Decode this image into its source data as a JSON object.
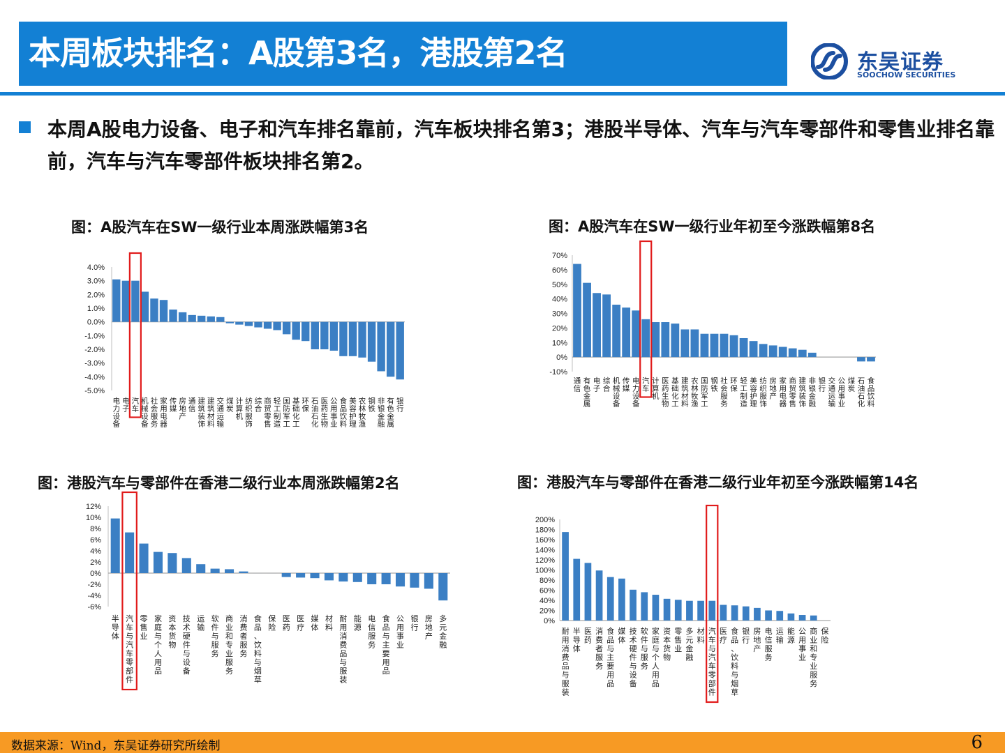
{
  "header": {
    "title": "本周板块排名：A股第3名，港股第2名"
  },
  "logo": {
    "name_cn": "东吴证券",
    "name_en": "SOOCHOW SECURITIES",
    "color": "#1c4fa0"
  },
  "bullet": {
    "text": "本周A股电力设备、电子和汽车排名靠前，汽车板块排名第3；港股半导体、汽车与汽车零部件和零售业排名靠前，汽车与汽车零部件板块排名第2。"
  },
  "footer": {
    "source": "数据来源：Wind，东吴证券研究所绘制",
    "page": "6"
  },
  "colors": {
    "accent": "#1380d4",
    "bar": "#3b7fc4",
    "highlight": "#e11b1b",
    "footer": "#f79a24"
  },
  "chart_data": [
    {
      "type": "bar",
      "title": "图：A股汽车在SW一级行业本周涨跌幅第3名",
      "categories": [
        "电力设备",
        "电子",
        "汽车",
        "机械设备",
        "社会服务",
        "家用电器",
        "传媒",
        "房地产",
        "通信",
        "建筑装饰",
        "建筑材料",
        "交通运输",
        "煤炭",
        "计算机",
        "纺织服饰",
        "综合",
        "商贸零售",
        "轻工制造",
        "国防军工",
        "基础化工",
        "环保",
        "石油石化",
        "医药生物",
        "公用事业",
        "食品饮料",
        "美容护理",
        "农林牧渔",
        "钢铁",
        "非银金融",
        "有色金属",
        "银行"
      ],
      "values": [
        3.1,
        3.0,
        3.0,
        2.2,
        1.7,
        1.6,
        0.9,
        0.7,
        0.5,
        0.45,
        0.4,
        0.35,
        -0.1,
        -0.2,
        -0.3,
        -0.4,
        -0.5,
        -0.6,
        -0.9,
        -1.3,
        -1.4,
        -2.0,
        -2.0,
        -2.1,
        -2.5,
        -2.5,
        -2.6,
        -2.9,
        -3.6,
        -4.0,
        -4.2
      ],
      "highlight": "汽车",
      "ylim": [
        -5,
        4
      ],
      "yticks": [
        "4.0%",
        "3.0%",
        "2.0%",
        "1.0%",
        "0.0%",
        "-1.0%",
        "-2.0%",
        "-3.0%",
        "-4.0%",
        "-5.0%"
      ]
    },
    {
      "type": "bar",
      "title": "图：A股汽车在SW一级行业年初至今涨跌幅第8名",
      "categories": [
        "通信",
        "有色金属",
        "电子",
        "综合",
        "机械设备",
        "传媒",
        "电力设备",
        "汽车",
        "计算机",
        "医药生物",
        "基础化工",
        "建筑材料",
        "农林牧渔",
        "国防军工",
        "钢铁",
        "社会服务",
        "环保",
        "轻工制造",
        "美容护理",
        "纺织服饰",
        "房地产",
        "家用电器",
        "商贸零售",
        "建筑装饰",
        "非银金融",
        "银行",
        "交通运输",
        "公用事业",
        "煤炭",
        "石油石化",
        "食品饮料"
      ],
      "values": [
        64,
        51,
        44,
        43,
        36,
        34,
        32,
        26,
        24,
        24,
        23,
        19,
        19,
        16,
        16,
        16,
        15,
        13,
        11,
        9,
        8,
        7,
        6,
        5,
        3,
        0,
        0,
        0,
        0,
        -3,
        -3
      ],
      "highlight": "汽车",
      "ylim": [
        -10,
        70
      ],
      "yticks": [
        "70%",
        "60%",
        "50%",
        "40%",
        "30%",
        "20%",
        "10%",
        "0%",
        "-10%"
      ]
    },
    {
      "type": "bar",
      "title": "图：港股汽车与零部件在香港二级行业本周涨跌幅第2名",
      "categories": [
        "半导体",
        "汽车与汽车零部件",
        "零售业",
        "家庭与个人用品",
        "资本货物",
        "技术硬件与设备",
        "运输",
        "软件与服务",
        "商业和专业服务",
        "消费者服务",
        "食品、饮料与烟草",
        "保险",
        "医药",
        "医疗",
        "媒体",
        "材料",
        "耐用消费品与服装",
        "能源",
        "电信服务",
        "食品与主要用品",
        "公用事业",
        "银行",
        "房地产",
        "多元金融"
      ],
      "values": [
        9.8,
        7.3,
        5.3,
        3.8,
        3.6,
        2.7,
        1.6,
        0.8,
        0.7,
        0.3,
        0.0,
        0.0,
        -0.7,
        -0.8,
        -0.9,
        -1.3,
        -1.5,
        -1.6,
        -2.0,
        -2.0,
        -2.4,
        -2.6,
        -2.8,
        -4.9
      ],
      "highlight": "汽车与汽车零部件",
      "ylim": [
        -6,
        12
      ],
      "yticks": [
        "12%",
        "10%",
        "8%",
        "6%",
        "4%",
        "2%",
        "0%",
        "-2%",
        "-4%",
        "-6%"
      ]
    },
    {
      "type": "bar",
      "title": "图：港股汽车与零部件在香港二级行业年初至今涨跌幅第14名",
      "categories": [
        "耐用消费品与服装",
        "半导体",
        "医药",
        "消费者服务",
        "食品与主要用品",
        "媒体",
        "技术硬件与设备",
        "软件与服务",
        "家庭与个人用品",
        "资本货物",
        "零售业",
        "多元金融",
        "材料",
        "汽车与汽车零部件",
        "医疗",
        "食品、饮料与烟草",
        "银行",
        "房地产",
        "电信服务",
        "运输",
        "能源",
        "公用事业",
        "商业和专业服务",
        "保险"
      ],
      "values": [
        175,
        122,
        114,
        99,
        86,
        83,
        61,
        56,
        51,
        43,
        41,
        39,
        39,
        39,
        31,
        30,
        28,
        25,
        20,
        19,
        14,
        11,
        10,
        0
      ],
      "highlight": "汽车与汽车零部件",
      "ylim": [
        0,
        200
      ],
      "yticks": [
        "200%",
        "180%",
        "160%",
        "140%",
        "120%",
        "100%",
        "80%",
        "60%",
        "40%",
        "20%",
        "0%"
      ]
    }
  ]
}
